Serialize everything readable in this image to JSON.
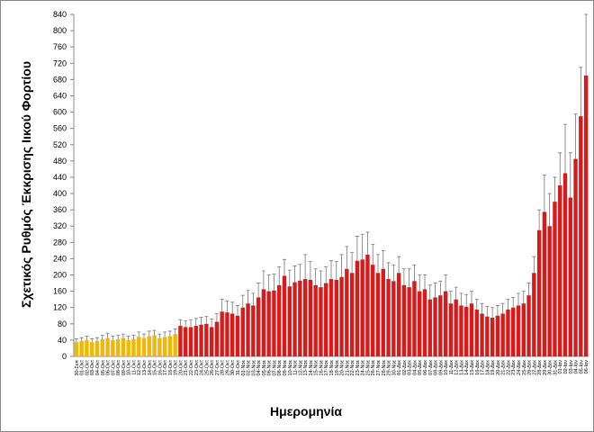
{
  "chart_data": {
    "type": "bar",
    "y_label": "Σχετικός Ρυθμός Έκκρισης Ιικού Φορτίου",
    "x_label": "Ημερομηνία",
    "categories": [
      "30-Σεπ",
      "01-Οκτ",
      "02-Οκτ",
      "03-Οκτ",
      "04-Οκτ",
      "05-Οκτ",
      "06-Οκτ",
      "07-Οκτ",
      "08-Οκτ",
      "09-Οκτ",
      "10-Οκτ",
      "11-Οκτ",
      "12-Οκτ",
      "13-Οκτ",
      "14-Οκτ",
      "15-Οκτ",
      "16-Οκτ",
      "17-Οκτ",
      "18-Οκτ",
      "19-Οκτ",
      "20-Οκτ",
      "21-Οκτ",
      "22-Οκτ",
      "23-Οκτ",
      "24-Οκτ",
      "25-Οκτ",
      "26-Οκτ",
      "27-Οκτ",
      "28-Οκτ",
      "29-Οκτ",
      "30-Οκτ",
      "31-Οκτ",
      "01-Νοε",
      "02-Νοε",
      "03-Νοε",
      "04-Νοε",
      "05-Νοε",
      "06-Νοε",
      "07-Νοε",
      "08-Νοε",
      "09-Νοε",
      "10-Νοε",
      "11-Νοε",
      "12-Νοε",
      "13-Νοε",
      "14-Νοε",
      "15-Νοε",
      "16-Νοε",
      "17-Νοε",
      "18-Νοε",
      "19-Νοε",
      "20-Νοε",
      "21-Νοε",
      "22-Νοε",
      "23-Νοε",
      "24-Νοε",
      "25-Νοε",
      "26-Νοε",
      "27-Νοε",
      "28-Νοε",
      "29-Νοε",
      "30-Νοε",
      "01-Δεκ",
      "02-Δεκ",
      "03-Δεκ",
      "04-Δεκ",
      "05-Δεκ",
      "06-Δεκ",
      "07-Δεκ",
      "08-Δεκ",
      "09-Δεκ",
      "10-Δεκ",
      "11-Δεκ",
      "12-Δεκ",
      "13-Δεκ",
      "14-Δεκ",
      "15-Δεκ",
      "16-Δεκ",
      "17-Δεκ",
      "18-Δεκ",
      "19-Δεκ",
      "20-Δεκ",
      "21-Δεκ",
      "22-Δεκ",
      "23-Δεκ",
      "24-Δεκ",
      "25-Δεκ",
      "26-Δεκ",
      "27-Δεκ",
      "28-Δεκ",
      "29-Δεκ",
      "30-Δεκ",
      "31-Δεκ",
      "01-Ιαν",
      "02-Ιαν",
      "03-Ιαν",
      "04-Ιαν",
      "05-Ιαν",
      "06-Ιαν"
    ],
    "values": [
      35,
      38,
      40,
      35,
      38,
      42,
      45,
      40,
      42,
      45,
      40,
      42,
      48,
      45,
      50,
      52,
      45,
      48,
      50,
      55,
      75,
      72,
      72,
      75,
      78,
      80,
      72,
      85,
      110,
      108,
      105,
      100,
      120,
      130,
      125,
      145,
      165,
      160,
      162,
      175,
      198,
      172,
      182,
      186,
      190,
      188,
      175,
      170,
      180,
      190,
      188,
      195,
      215,
      205,
      235,
      238,
      250,
      225,
      205,
      215,
      190,
      185,
      205,
      175,
      170,
      185,
      160,
      165,
      140,
      145,
      150,
      160,
      130,
      140,
      125,
      122,
      130,
      115,
      105,
      98,
      95,
      100,
      105,
      115,
      120,
      125,
      130,
      150,
      205,
      310,
      355,
      320,
      380,
      420,
      450,
      390,
      485,
      590,
      690
    ],
    "errors": [
      8,
      8,
      10,
      8,
      8,
      10,
      12,
      10,
      10,
      10,
      10,
      10,
      12,
      10,
      12,
      12,
      10,
      12,
      12,
      12,
      15,
      15,
      18,
      18,
      18,
      18,
      20,
      20,
      30,
      28,
      28,
      25,
      30,
      32,
      30,
      35,
      45,
      40,
      40,
      45,
      40,
      40,
      40,
      40,
      60,
      45,
      40,
      40,
      40,
      45,
      45,
      55,
      55,
      50,
      60,
      62,
      55,
      50,
      45,
      45,
      40,
      40,
      40,
      40,
      45,
      40,
      40,
      35,
      35,
      35,
      35,
      40,
      30,
      30,
      30,
      30,
      30,
      25,
      25,
      25,
      25,
      25,
      25,
      25,
      25,
      30,
      30,
      30,
      40,
      50,
      90,
      80,
      60,
      80,
      120,
      110,
      110,
      120,
      150
    ],
    "colors": [
      "#f2b705",
      "#f2b705",
      "#f2b705",
      "#f2b705",
      "#f2b705",
      "#f2b705",
      "#f2b705",
      "#f2b705",
      "#f2b705",
      "#f2b705",
      "#f2b705",
      "#f2b705",
      "#f2b705",
      "#f2b705",
      "#f2b705",
      "#f2b705",
      "#f2b705",
      "#f2b705",
      "#f2b705",
      "#f2b705",
      "#d91a1a",
      "#d91a1a",
      "#d91a1a",
      "#d91a1a",
      "#d91a1a",
      "#d91a1a",
      "#d91a1a",
      "#d91a1a",
      "#d91a1a",
      "#d91a1a",
      "#d91a1a",
      "#d91a1a",
      "#d91a1a",
      "#d91a1a",
      "#d91a1a",
      "#d91a1a",
      "#d91a1a",
      "#d91a1a",
      "#d91a1a",
      "#d91a1a",
      "#d91a1a",
      "#d91a1a",
      "#d91a1a",
      "#d91a1a",
      "#d91a1a",
      "#d91a1a",
      "#d91a1a",
      "#d91a1a",
      "#d91a1a",
      "#d91a1a",
      "#d91a1a",
      "#d91a1a",
      "#d91a1a",
      "#d91a1a",
      "#d91a1a",
      "#d91a1a",
      "#d91a1a",
      "#d91a1a",
      "#d91a1a",
      "#d91a1a",
      "#d91a1a",
      "#d91a1a",
      "#d91a1a",
      "#d91a1a",
      "#d91a1a",
      "#d91a1a",
      "#d91a1a",
      "#d91a1a",
      "#d91a1a",
      "#d91a1a",
      "#d91a1a",
      "#d91a1a",
      "#d91a1a",
      "#d91a1a",
      "#d91a1a",
      "#d91a1a",
      "#d91a1a",
      "#d91a1a",
      "#d91a1a",
      "#d91a1a",
      "#d91a1a",
      "#d91a1a",
      "#d91a1a",
      "#d91a1a",
      "#d91a1a",
      "#d91a1a",
      "#d91a1a",
      "#d91a1a",
      "#d91a1a",
      "#d91a1a",
      "#d91a1a",
      "#d91a1a",
      "#d91a1a",
      "#d91a1a",
      "#d91a1a",
      "#d91a1a",
      "#d91a1a",
      "#d91a1a",
      "#d91a1a"
    ],
    "ylim": [
      0,
      840
    ],
    "yticks": [
      0,
      40,
      80,
      120,
      160,
      200,
      240,
      280,
      320,
      360,
      400,
      440,
      480,
      520,
      560,
      600,
      640,
      680,
      720,
      760,
      800,
      840
    ],
    "grid": false
  }
}
